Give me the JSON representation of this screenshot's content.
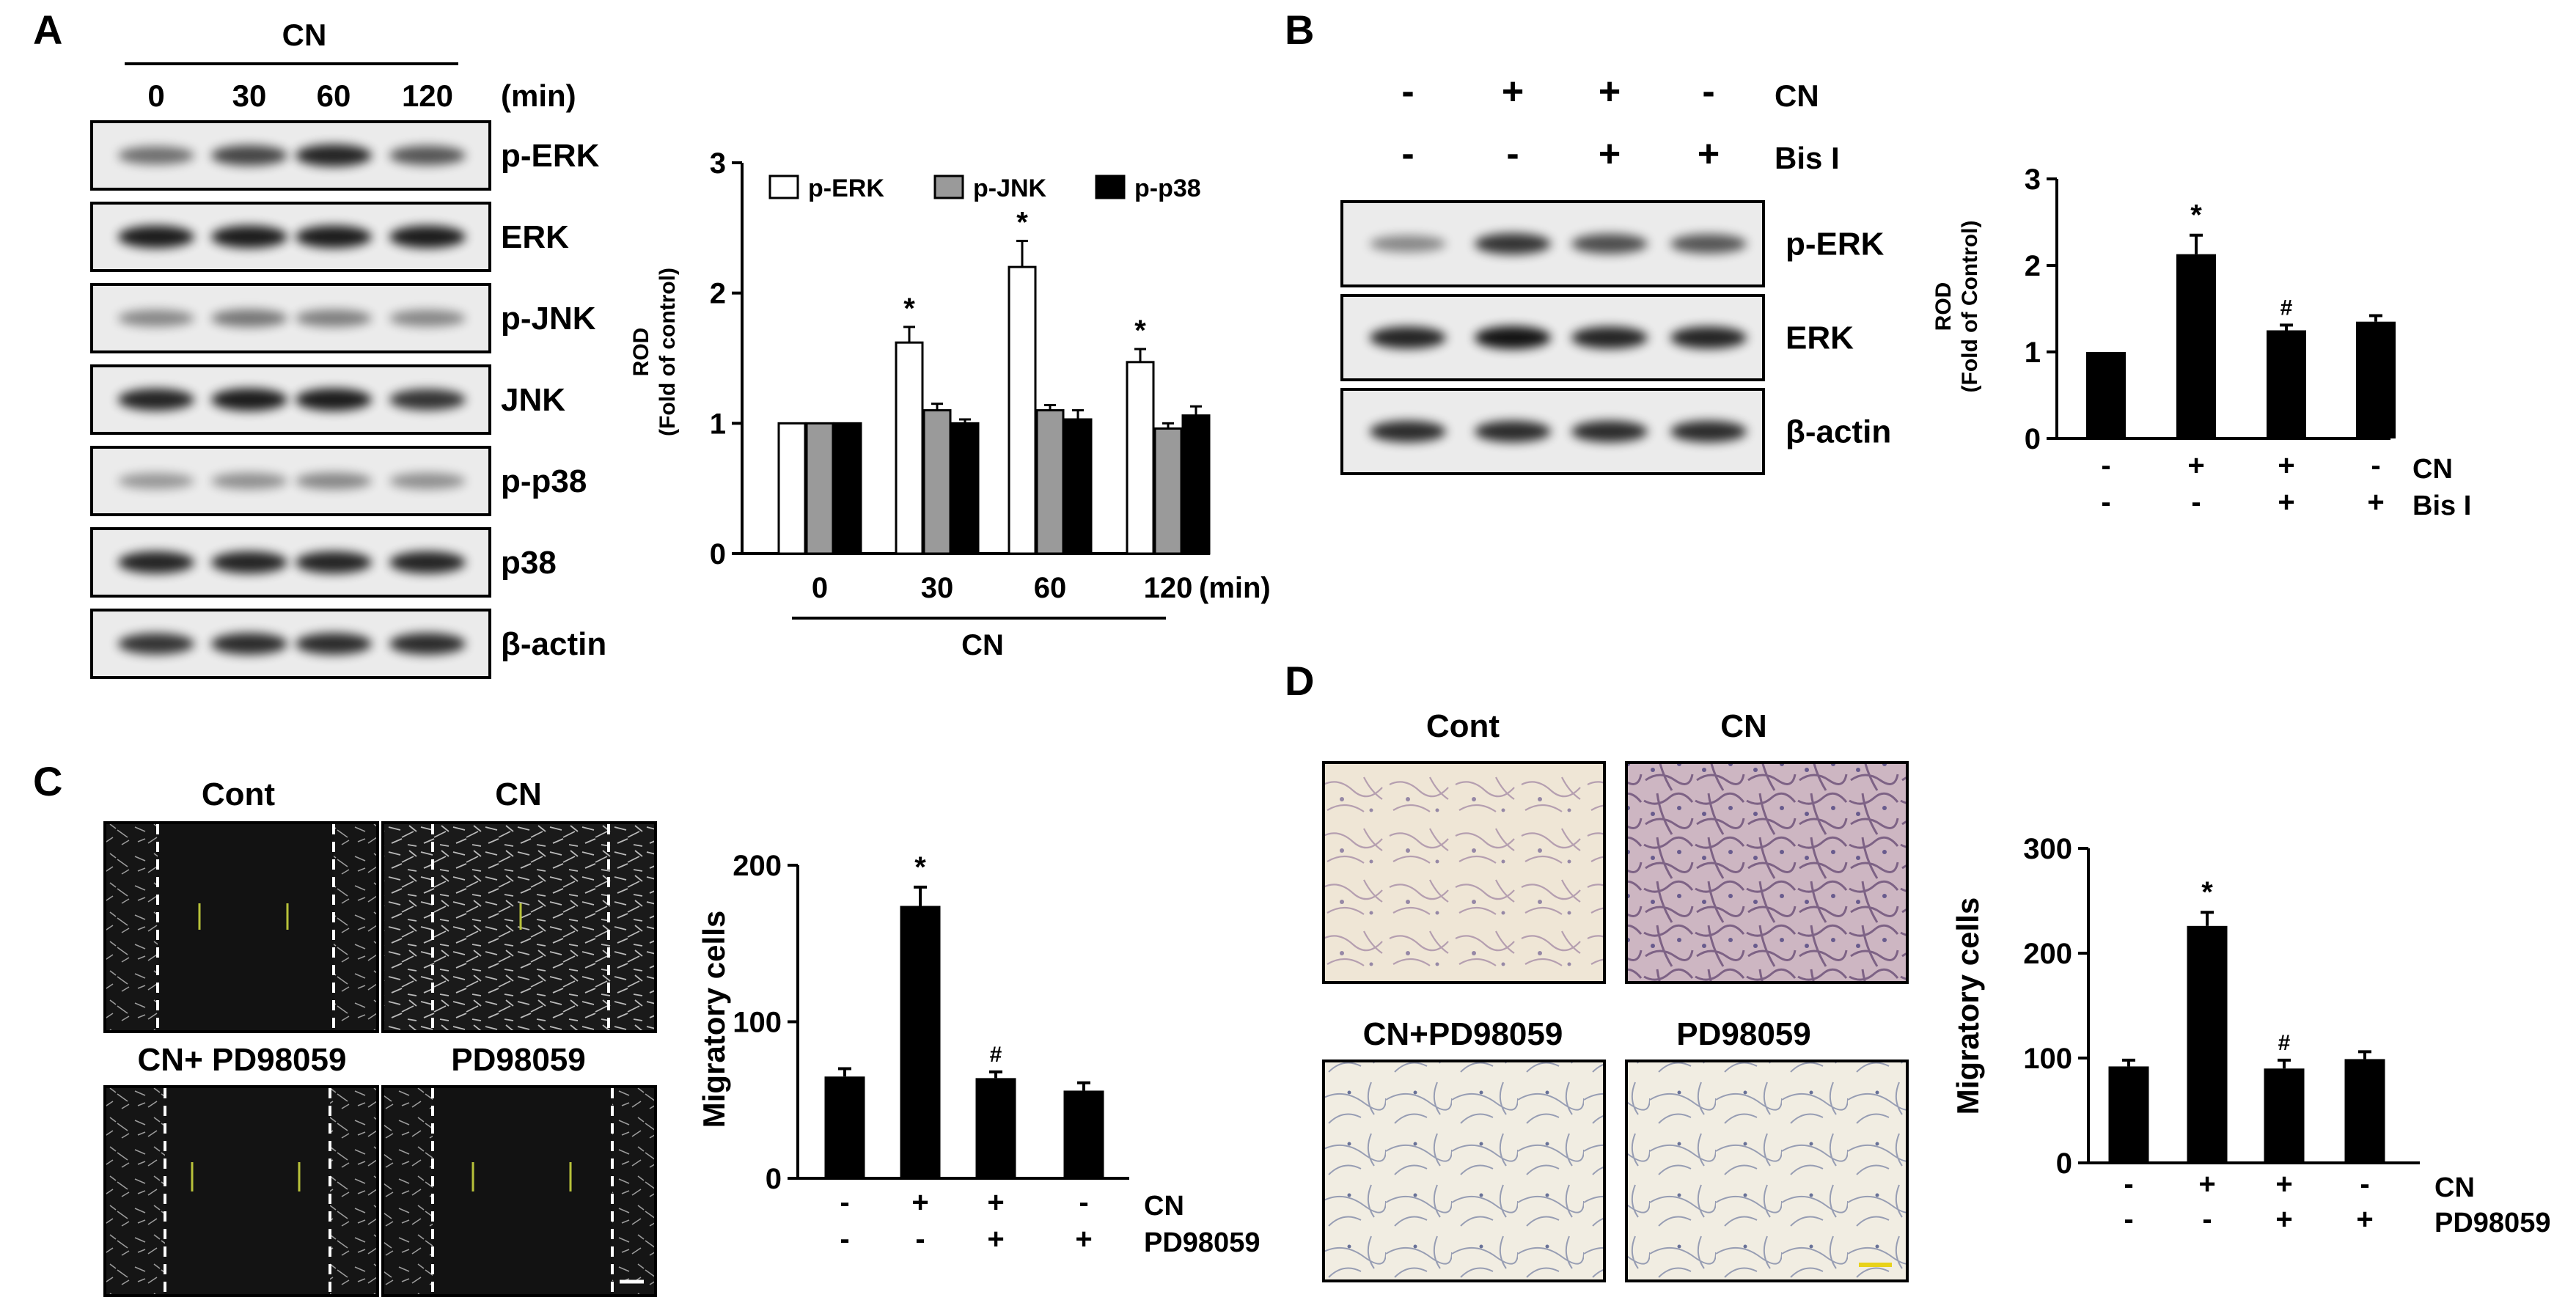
{
  "panel_letters": [
    "A",
    "B",
    "C",
    "D"
  ],
  "panel_a": {
    "blot": {
      "treatment": "CN",
      "times": [
        "0",
        "30",
        "60",
        "120"
      ],
      "unit": "(min)",
      "rows": [
        "p-ERK",
        "ERK",
        "p-JNK",
        "JNK",
        "p-p38",
        "p38",
        "β-actin"
      ]
    }
  },
  "panel_b": {
    "blot": {
      "factors": [
        {
          "name": "CN",
          "signs": [
            "-",
            "+",
            "+",
            "-"
          ]
        },
        {
          "name": "Bis I",
          "signs": [
            "-",
            "-",
            "+",
            "+"
          ]
        }
      ],
      "rows": [
        "p-ERK",
        "ERK",
        "β-actin"
      ]
    }
  },
  "panel_c": {
    "images": [
      "Cont",
      "CN",
      "CN+ PD98059",
      "PD98059"
    ]
  },
  "panel_d": {
    "images": [
      "Cont",
      "CN",
      "CN+PD98059",
      "PD98059"
    ]
  },
  "colors": {
    "bar_black": "#000000",
    "bar_white": "#ffffff",
    "bar_gray": "#9a9a9a",
    "micro_dark": "#141414",
    "stain_purple": "#6a4a78"
  },
  "chart_data": [
    {
      "panel": "A",
      "type": "bar",
      "ylabel": "ROD\n(Fold of control)",
      "ylim": [
        0,
        3
      ],
      "yticks": [
        "0",
        "1",
        "2",
        "3"
      ],
      "categories": [
        "0",
        "30",
        "60",
        "120"
      ],
      "x_unit": "(min)",
      "group_label": "CN",
      "series": [
        {
          "name": "p-ERK",
          "color": "#ffffff",
          "values": [
            1.0,
            1.62,
            2.2,
            1.47
          ],
          "errors": [
            0,
            0.12,
            0.2,
            0.1
          ],
          "sig": [
            "",
            "*",
            "*",
            "*"
          ]
        },
        {
          "name": "p-JNK",
          "color": "#9a9a9a",
          "values": [
            1.0,
            1.1,
            1.1,
            0.96
          ],
          "errors": [
            0,
            0.05,
            0.04,
            0.04
          ],
          "sig": [
            "",
            "",
            "",
            ""
          ]
        },
        {
          "name": "p-p38",
          "color": "#000000",
          "values": [
            1.0,
            1.0,
            1.03,
            1.06
          ],
          "errors": [
            0,
            0.03,
            0.07,
            0.07
          ],
          "sig": [
            "",
            "",
            "",
            ""
          ]
        }
      ],
      "legend_position": "top"
    },
    {
      "panel": "B",
      "type": "bar",
      "ylabel": "ROD\n(Fold of Control)",
      "ylim": [
        0,
        3
      ],
      "yticks": [
        "0",
        "1",
        "2",
        "3"
      ],
      "values": [
        1.0,
        2.13,
        1.25,
        1.35
      ],
      "errors": [
        0,
        0.22,
        0.06,
        0.07
      ],
      "sig": [
        "",
        "*",
        "#",
        ""
      ],
      "factors": [
        {
          "name": "CN",
          "signs": [
            "-",
            "+",
            "+",
            "-"
          ]
        },
        {
          "name": "Bis I",
          "signs": [
            "-",
            "-",
            "+",
            "+"
          ]
        }
      ]
    },
    {
      "panel": "C",
      "type": "bar",
      "ylabel": "Migratory cells",
      "ylim": [
        0,
        200
      ],
      "yticks": [
        "0",
        "100",
        "200"
      ],
      "values": [
        65,
        174,
        64,
        56
      ],
      "errors": [
        5,
        12,
        4,
        5
      ],
      "sig": [
        "",
        "*",
        "#",
        ""
      ],
      "factors": [
        {
          "name": "CN",
          "signs": [
            "-",
            "+",
            "+",
            "-"
          ]
        },
        {
          "name": "PD98059",
          "signs": [
            "-",
            "-",
            "+",
            "+"
          ]
        }
      ]
    },
    {
      "panel": "D",
      "type": "bar",
      "ylabel": "Migratory cells",
      "ylim": [
        0,
        300
      ],
      "yticks": [
        "0",
        "100",
        "200",
        "300"
      ],
      "values": [
        92,
        226,
        90,
        99
      ],
      "errors": [
        6,
        13,
        8,
        7
      ],
      "sig": [
        "",
        "*",
        "#",
        ""
      ],
      "factors": [
        {
          "name": "CN",
          "signs": [
            "-",
            "+",
            "+",
            "-"
          ]
        },
        {
          "name": "PD98059",
          "signs": [
            "-",
            "-",
            "+",
            "+"
          ]
        }
      ]
    }
  ]
}
